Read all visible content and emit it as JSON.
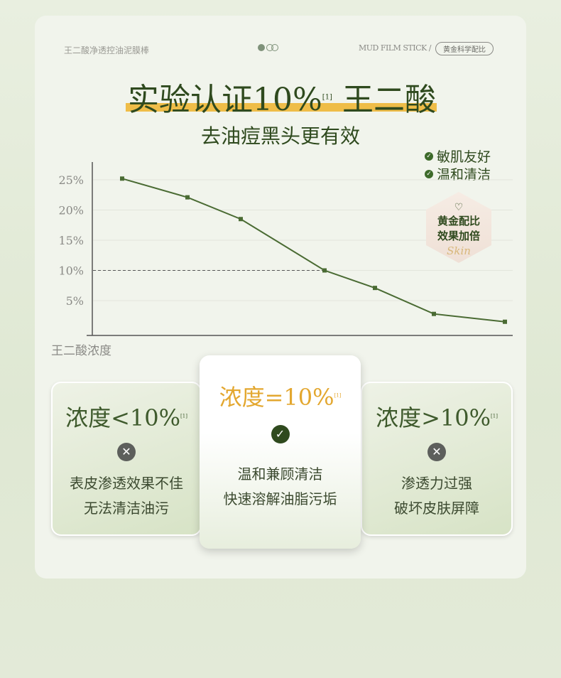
{
  "header": {
    "brand": "王二酸净透控油泥膜棒",
    "eng": "MUD FILM STICK /",
    "pill": "黄金科学配比"
  },
  "title": {
    "main": "实验认证10%",
    "ref": "[1]",
    "tail": " 王二酸",
    "subtitle": "去油痘黑头更有效"
  },
  "features": [
    "敏肌友好",
    "温和清洁"
  ],
  "badge": {
    "line1": "黄金配比",
    "line2": "效果加倍",
    "script": "Skin"
  },
  "chart_data": {
    "type": "line",
    "xlabel": "王二酸浓度",
    "ylabel": "",
    "ylim": [
      0,
      28
    ],
    "yticks": [
      "25%",
      "20%",
      "15%",
      "10%",
      "5%"
    ],
    "ytick_values": [
      25,
      20,
      15,
      10,
      5
    ],
    "grid": true,
    "reference_line": 10,
    "series": [
      {
        "values": [
          25.2,
          22.1,
          18.5,
          10,
          7.1,
          2.8,
          1.5
        ]
      }
    ],
    "color": "#4a6b33"
  },
  "cards": [
    {
      "title": "浓度<10%",
      "ref": "[1]",
      "icon": "x-icon",
      "lines": [
        "表皮渗透效果不佳",
        "无法清洁油污"
      ]
    },
    {
      "title": "浓度=10%",
      "ref": "[1]",
      "icon": "check-icon",
      "lines": [
        "温和兼顾清洁",
        "快速溶解油脂污垢"
      ]
    },
    {
      "title": "浓度>10%",
      "ref": "[1]",
      "icon": "x-icon",
      "lines": [
        "渗透力过强",
        "破坏皮肤屏障"
      ]
    }
  ]
}
